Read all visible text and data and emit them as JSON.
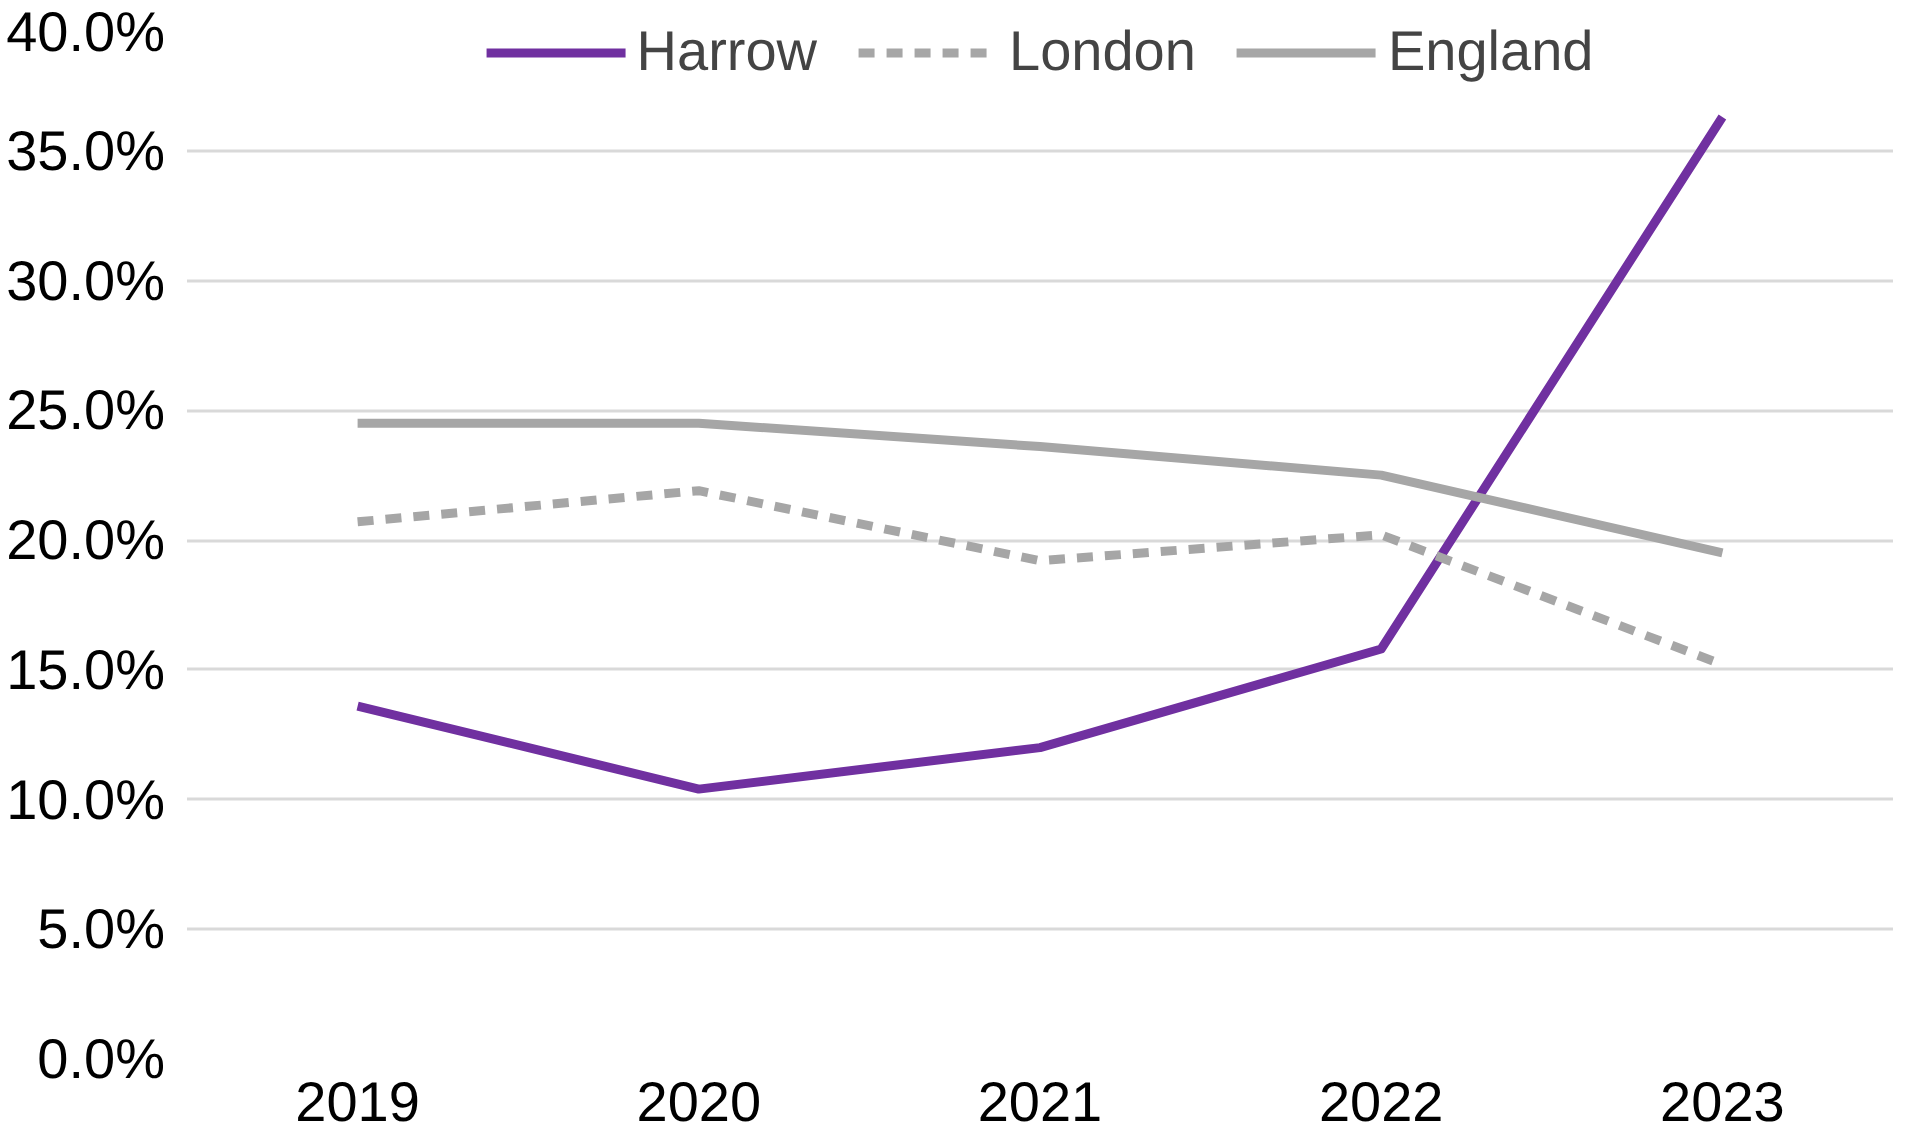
{
  "chart_data": {
    "type": "line",
    "categories": [
      "2019",
      "2020",
      "2021",
      "2022",
      "2023"
    ],
    "series": [
      {
        "name": "Harrow",
        "color": "#7030a0",
        "values": [
          13.6,
          10.4,
          12.0,
          15.8,
          36.3
        ]
      },
      {
        "name": "London",
        "color": "#a6a6a6",
        "values": [
          20.7,
          21.9,
          19.2,
          20.2,
          15.2
        ],
        "line_style": "dashed"
      },
      {
        "name": "England",
        "color": "#a6a6a6",
        "values": [
          24.5,
          24.5,
          23.6,
          22.5,
          19.5
        ]
      }
    ],
    "ylim": [
      0,
      40
    ],
    "yticks": [
      {
        "value": 0,
        "label": "0.0%"
      },
      {
        "value": 5,
        "label": "5.0%"
      },
      {
        "value": 10,
        "label": "10.0%"
      },
      {
        "value": 15,
        "label": "15.0%"
      },
      {
        "value": 20,
        "label": "20.0%"
      },
      {
        "value": 25,
        "label": "25.0%"
      },
      {
        "value": 30,
        "label": "30.0%"
      },
      {
        "value": 35,
        "label": "35.0%"
      },
      {
        "value": 40,
        "label": "40.0%"
      }
    ],
    "grid": "y",
    "legend": "top",
    "line_style": "solid",
    "marker": "none"
  }
}
